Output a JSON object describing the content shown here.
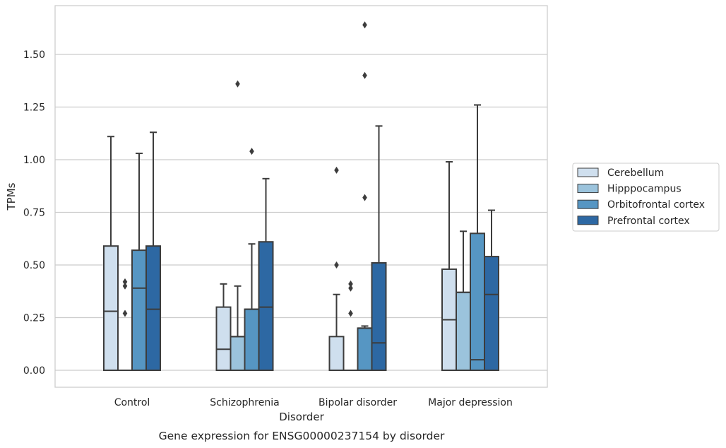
{
  "chart_data": {
    "type": "box",
    "xlabel": "Disorder",
    "ylabel": "TPMs",
    "caption": "Gene expression for ENSG00000237154 by disorder",
    "ylim": [
      -0.08,
      1.72
    ],
    "yticks": [
      0.0,
      0.25,
      0.5,
      0.75,
      1.0,
      1.25,
      1.5
    ],
    "ytick_labels": [
      "0.00",
      "0.25",
      "0.50",
      "0.75",
      "1.00",
      "1.25",
      "1.50"
    ],
    "grid": "horizontal",
    "legend_position": "right",
    "categories": [
      "Control",
      "Schizophrenia",
      "Bipolar disorder",
      "Major depression"
    ],
    "series": [
      {
        "name": "Cerebellum",
        "color": "#cfdfee",
        "boxes": [
          {
            "q1": 0.0,
            "median": 0.28,
            "q3": 0.59,
            "whisker_low": 0.0,
            "whisker_high": 1.11,
            "outliers": []
          },
          {
            "q1": 0.0,
            "median": 0.1,
            "q3": 0.3,
            "whisker_low": 0.0,
            "whisker_high": 0.41,
            "outliers": []
          },
          {
            "q1": 0.0,
            "median": 0.0,
            "q3": 0.16,
            "whisker_low": 0.0,
            "whisker_high": 0.36,
            "outliers": [
              0.5,
              0.95
            ]
          },
          {
            "q1": 0.0,
            "median": 0.24,
            "q3": 0.48,
            "whisker_low": 0.0,
            "whisker_high": 0.99,
            "outliers": []
          }
        ]
      },
      {
        "name": "Hipppocampus",
        "color": "#9bc3dc",
        "boxes": [
          {
            "q1": 0.0,
            "median": 0.0,
            "q3": 0.0,
            "whisker_low": 0.0,
            "whisker_high": 0.0,
            "outliers": [
              0.27,
              0.4,
              0.42
            ]
          },
          {
            "q1": 0.0,
            "median": 0.16,
            "q3": 0.16,
            "whisker_low": 0.0,
            "whisker_high": 0.4,
            "outliers": [
              1.36
            ]
          },
          {
            "q1": 0.0,
            "median": 0.0,
            "q3": 0.0,
            "whisker_low": 0.0,
            "whisker_high": 0.0,
            "outliers": [
              0.27,
              0.39,
              0.41
            ]
          },
          {
            "q1": 0.0,
            "median": 0.37,
            "q3": 0.37,
            "whisker_low": 0.0,
            "whisker_high": 0.66,
            "outliers": []
          }
        ]
      },
      {
        "name": "Orbitofrontal cortex",
        "color": "#5696c3",
        "boxes": [
          {
            "q1": 0.0,
            "median": 0.39,
            "q3": 0.57,
            "whisker_low": 0.0,
            "whisker_high": 1.03,
            "outliers": []
          },
          {
            "q1": 0.0,
            "median": 0.29,
            "q3": 0.29,
            "whisker_low": 0.0,
            "whisker_high": 0.6,
            "outliers": [
              1.04
            ]
          },
          {
            "q1": 0.0,
            "median": 0.2,
            "q3": 0.2,
            "whisker_low": 0.0,
            "whisker_high": 0.21,
            "outliers": [
              0.82,
              1.4,
              1.64
            ]
          },
          {
            "q1": 0.0,
            "median": 0.05,
            "q3": 0.65,
            "whisker_low": 0.0,
            "whisker_high": 1.26,
            "outliers": []
          }
        ]
      },
      {
        "name": "Prefrontal cortex",
        "color": "#2d68a3",
        "boxes": [
          {
            "q1": 0.0,
            "median": 0.29,
            "q3": 0.59,
            "whisker_low": 0.0,
            "whisker_high": 1.13,
            "outliers": []
          },
          {
            "q1": 0.0,
            "median": 0.3,
            "q3": 0.61,
            "whisker_low": 0.0,
            "whisker_high": 0.91,
            "outliers": []
          },
          {
            "q1": 0.0,
            "median": 0.13,
            "q3": 0.51,
            "whisker_low": 0.0,
            "whisker_high": 1.16,
            "outliers": []
          },
          {
            "q1": 0.0,
            "median": 0.36,
            "q3": 0.54,
            "whisker_low": 0.0,
            "whisker_high": 0.76,
            "outliers": []
          }
        ]
      }
    ]
  }
}
